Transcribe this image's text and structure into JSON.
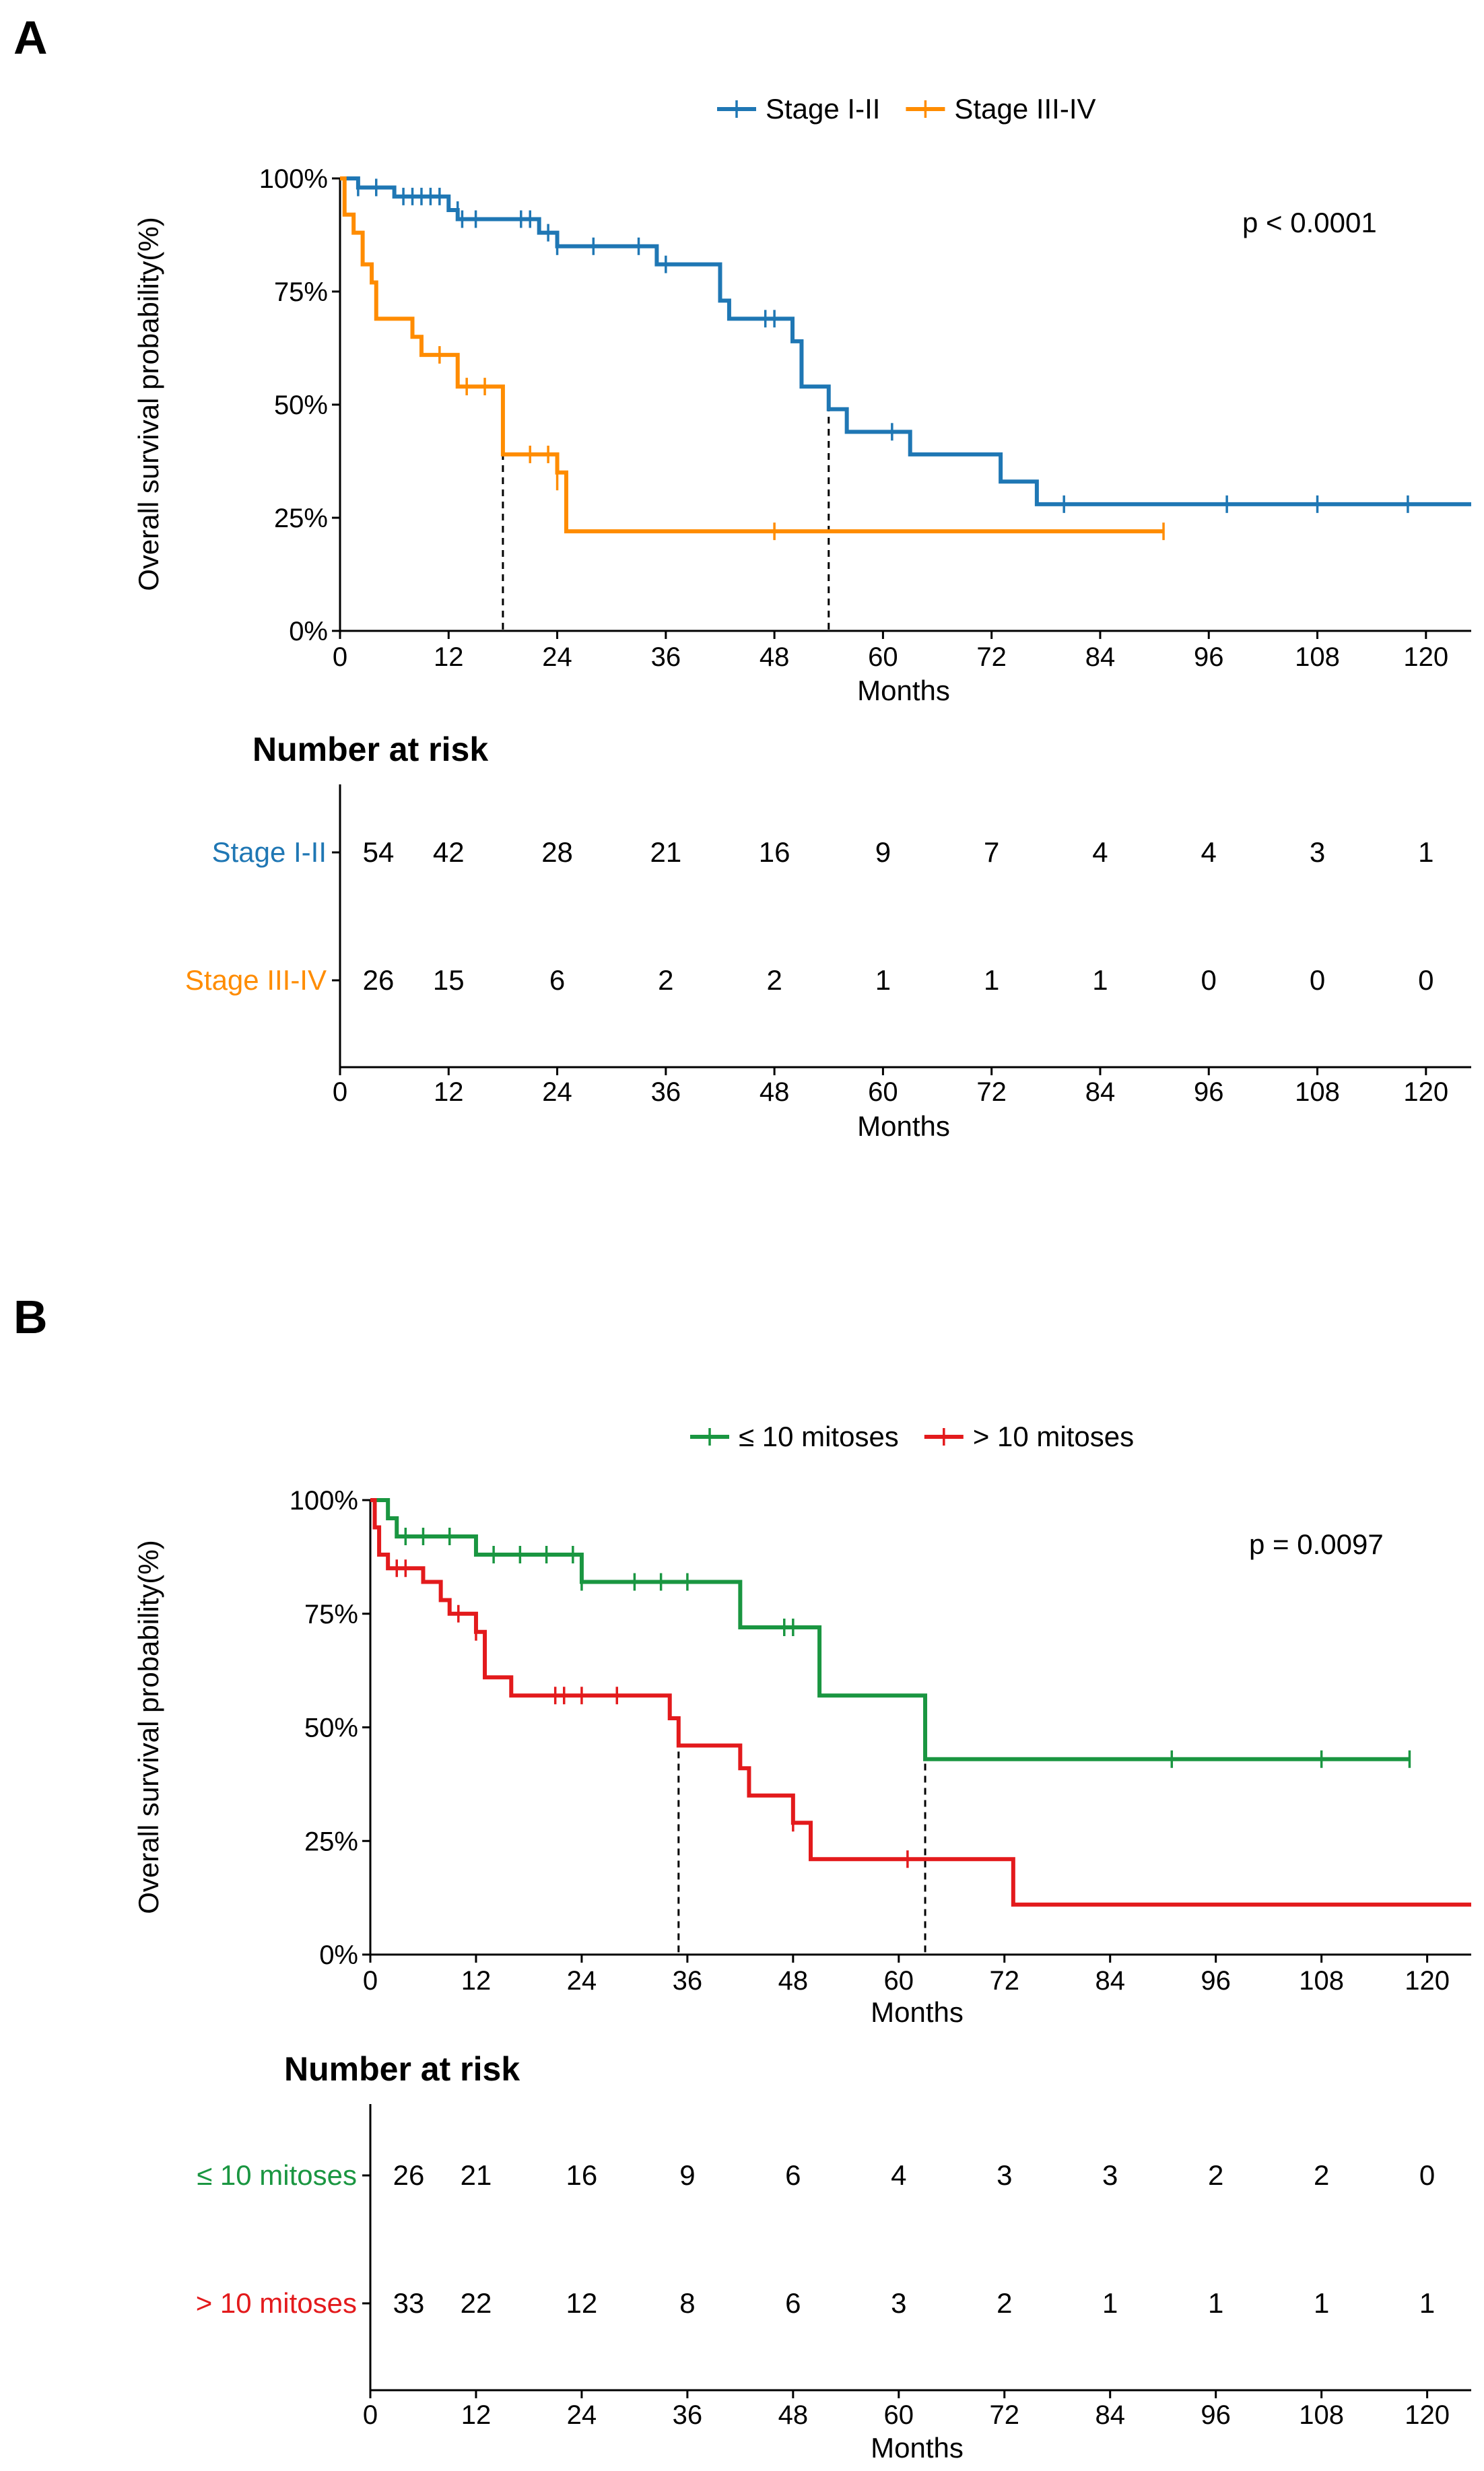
{
  "panels": [
    {
      "letter": "A",
      "chart_data": {
        "type": "line",
        "subtype": "kaplan-meier",
        "title": "",
        "xlabel": "Months",
        "ylabel": "Overall survival probability(%)",
        "xlim": [
          0,
          125
        ],
        "ylim": [
          0,
          100
        ],
        "xticks": [
          0,
          12,
          24,
          36,
          48,
          60,
          72,
          84,
          96,
          108,
          120
        ],
        "yticks": [
          0,
          25,
          50,
          75,
          100
        ],
        "ytick_labels": [
          "0%",
          "25%",
          "50%",
          "75%",
          "100%"
        ],
        "legend_position": "top-center",
        "grid": false,
        "p_value": "p < 0.0001",
        "series": [
          {
            "name": "Stage I-II",
            "color": "#1f77b4",
            "steps": [
              [
                0,
                100
              ],
              [
                2,
                98
              ],
              [
                6,
                96
              ],
              [
                12,
                93
              ],
              [
                13,
                91
              ],
              [
                22,
                88
              ],
              [
                24,
                85
              ],
              [
                35,
                81
              ],
              [
                42,
                73
              ],
              [
                43,
                69
              ],
              [
                50,
                64
              ],
              [
                51,
                54
              ],
              [
                54,
                49
              ],
              [
                56,
                44
              ],
              [
                63,
                39
              ],
              [
                73,
                33
              ],
              [
                77,
                28
              ],
              [
                125,
                28
              ]
            ],
            "censors": [
              [
                2,
                98
              ],
              [
                4,
                98
              ],
              [
                7,
                96
              ],
              [
                8,
                96
              ],
              [
                9,
                96
              ],
              [
                10,
                96
              ],
              [
                11,
                96
              ],
              [
                13,
                93
              ],
              [
                13.5,
                91
              ],
              [
                15,
                91
              ],
              [
                20,
                91
              ],
              [
                21,
                91
              ],
              [
                23,
                88
              ],
              [
                24,
                85
              ],
              [
                28,
                85
              ],
              [
                33,
                85
              ],
              [
                36,
                81
              ],
              [
                47,
                69
              ],
              [
                48,
                69
              ],
              [
                61,
                44
              ],
              [
                80,
                28
              ],
              [
                98,
                28
              ],
              [
                108,
                28
              ],
              [
                118,
                28
              ]
            ],
            "median": 54
          },
          {
            "name": "Stage III-IV",
            "color": "#ff8c00",
            "steps": [
              [
                0,
                100
              ],
              [
                0.5,
                92
              ],
              [
                1.5,
                88
              ],
              [
                2.5,
                81
              ],
              [
                3.5,
                77
              ],
              [
                4,
                69
              ],
              [
                8,
                65
              ],
              [
                9,
                61
              ],
              [
                13,
                54
              ],
              [
                18,
                39
              ],
              [
                24,
                35
              ],
              [
                25,
                22
              ],
              [
                91,
                22
              ]
            ],
            "censors": [
              [
                11,
                61
              ],
              [
                14,
                54
              ],
              [
                16,
                54
              ],
              [
                21,
                39
              ],
              [
                23,
                39
              ],
              [
                24,
                33
              ],
              [
                48,
                22
              ],
              [
                91,
                22
              ]
            ],
            "median": 18
          }
        ],
        "risk_table": {
          "title": "Number at risk",
          "times": [
            0,
            12,
            24,
            36,
            48,
            60,
            72,
            84,
            96,
            108,
            120
          ],
          "rows": [
            {
              "name": "Stage I-II",
              "color": "#1f77b4",
              "values": [
                "54",
                "42",
                "28",
                "21",
                "16",
                "9",
                "7",
                "4",
                "4",
                "3",
                "1"
              ]
            },
            {
              "name": "Stage III-IV",
              "color": "#ff8c00",
              "values": [
                "26",
                "15",
                "6",
                "2",
                "2",
                "1",
                "1",
                "1",
                "0",
                "0",
                "0"
              ]
            }
          ],
          "xlabel": "Months"
        }
      }
    },
    {
      "letter": "B",
      "chart_data": {
        "type": "line",
        "subtype": "kaplan-meier",
        "title": "",
        "xlabel": "Months",
        "ylabel": "Overall survival probability(%)",
        "xlim": [
          0,
          125
        ],
        "ylim": [
          0,
          100
        ],
        "xticks": [
          0,
          12,
          24,
          36,
          48,
          60,
          72,
          84,
          96,
          108,
          120
        ],
        "yticks": [
          0,
          25,
          50,
          75,
          100
        ],
        "ytick_labels": [
          "0%",
          "25%",
          "50%",
          "75%",
          "100%"
        ],
        "legend_position": "top-center",
        "grid": false,
        "p_value": "p = 0.0097",
        "series": [
          {
            "name": "≤ 10 mitoses",
            "color": "#1a9641",
            "steps": [
              [
                0,
                100
              ],
              [
                2,
                96
              ],
              [
                3,
                92
              ],
              [
                12,
                88
              ],
              [
                24,
                82
              ],
              [
                42,
                72
              ],
              [
                51,
                57
              ],
              [
                63,
                43
              ],
              [
                118,
                43
              ]
            ],
            "censors": [
              [
                4,
                92
              ],
              [
                6,
                92
              ],
              [
                9,
                92
              ],
              [
                14,
                88
              ],
              [
                17,
                88
              ],
              [
                20,
                88
              ],
              [
                23,
                88
              ],
              [
                24,
                82
              ],
              [
                30,
                82
              ],
              [
                33,
                82
              ],
              [
                36,
                82
              ],
              [
                47,
                72
              ],
              [
                48,
                72
              ],
              [
                91,
                43
              ],
              [
                108,
                43
              ],
              [
                118,
                43
              ]
            ],
            "median": 63
          },
          {
            "name": "> 10 mitoses",
            "color": "#e31a1c",
            "steps": [
              [
                0,
                100
              ],
              [
                0.5,
                94
              ],
              [
                1,
                88
              ],
              [
                2,
                85
              ],
              [
                6,
                82
              ],
              [
                8,
                78
              ],
              [
                9,
                75
              ],
              [
                12,
                71
              ],
              [
                13,
                61
              ],
              [
                16,
                57
              ],
              [
                34,
                52
              ],
              [
                35,
                46
              ],
              [
                42,
                41
              ],
              [
                43,
                35
              ],
              [
                48,
                29
              ],
              [
                50,
                21
              ],
              [
                73,
                11
              ],
              [
                125,
                11
              ]
            ],
            "censors": [
              [
                3,
                85
              ],
              [
                4,
                85
              ],
              [
                10,
                75
              ],
              [
                12,
                71
              ],
              [
                21,
                57
              ],
              [
                22,
                57
              ],
              [
                24,
                57
              ],
              [
                28,
                57
              ],
              [
                48,
                29
              ],
              [
                61,
                21
              ]
            ],
            "median": 35
          }
        ],
        "risk_table": {
          "title": "Number at risk",
          "times": [
            0,
            12,
            24,
            36,
            48,
            60,
            72,
            84,
            96,
            108,
            120
          ],
          "rows": [
            {
              "name": "≤ 10 mitoses",
              "color": "#1a9641",
              "values": [
                "26",
                "21",
                "16",
                "9",
                "6",
                "4",
                "3",
                "3",
                "2",
                "2",
                "0"
              ]
            },
            {
              "name": "> 10 mitoses",
              "color": "#e31a1c",
              "values": [
                "33",
                "22",
                "12",
                "8",
                "6",
                "3",
                "2",
                "1",
                "1",
                "1",
                "1"
              ]
            }
          ],
          "xlabel": "Months"
        }
      }
    }
  ]
}
